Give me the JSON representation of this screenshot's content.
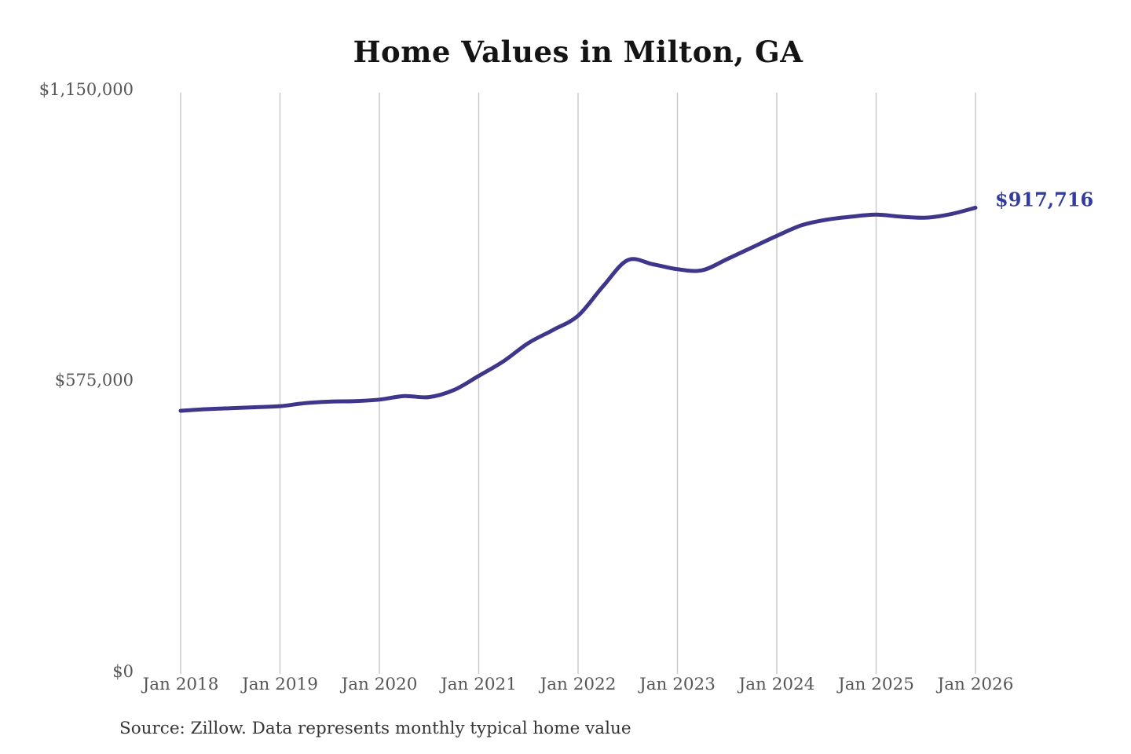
{
  "header": {
    "title": "Home Values in Milton, GA"
  },
  "chart_data": {
    "type": "line",
    "title": "Home Values in Milton, GA",
    "xlabel": "",
    "ylabel": "",
    "ylim": [
      0,
      1150000
    ],
    "xlim": [
      2018,
      2026
    ],
    "grid": "vertical-only",
    "legend_position": "none",
    "x_ticks": [
      "Jan 2018",
      "Jan 2019",
      "Jan 2020",
      "Jan 2021",
      "Jan 2022",
      "Jan 2023",
      "Jan 2024",
      "Jan 2025",
      "Jan 2026"
    ],
    "x_tick_years": [
      2018,
      2019,
      2020,
      2021,
      2022,
      2023,
      2024,
      2025,
      2026
    ],
    "y_ticks": [
      "$1,150,000",
      "$575,000",
      "$0"
    ],
    "y_tick_values": [
      1150000,
      575000,
      0
    ],
    "series": [
      {
        "name": "Monthly typical home value",
        "x": [
          2018.0,
          2018.25,
          2018.5,
          2018.75,
          2019.0,
          2019.25,
          2019.5,
          2019.75,
          2020.0,
          2020.25,
          2020.5,
          2020.75,
          2021.0,
          2021.25,
          2021.5,
          2021.75,
          2022.0,
          2022.25,
          2022.5,
          2022.75,
          2023.0,
          2023.25,
          2023.5,
          2023.75,
          2024.0,
          2024.25,
          2024.5,
          2024.75,
          2025.0,
          2025.25,
          2025.5,
          2025.75,
          2026.0
        ],
        "values": [
          516000,
          519000,
          521000,
          523000,
          525000,
          531000,
          534000,
          535000,
          538000,
          545000,
          543000,
          557000,
          585000,
          614000,
          650000,
          676000,
          704000,
          762000,
          814000,
          806000,
          796000,
          794000,
          816000,
          839000,
          862000,
          883000,
          894000,
          900000,
          904000,
          900000,
          898000,
          905000,
          917716
        ]
      }
    ],
    "end_label": "$917,716",
    "end_value": 917716,
    "line_color": "#3d368b",
    "end_label_color": "#333b9e",
    "grid_color": "#cbcbcb"
  },
  "footer": {
    "source": "Source: Zillow. Data represents monthly typical home value"
  }
}
